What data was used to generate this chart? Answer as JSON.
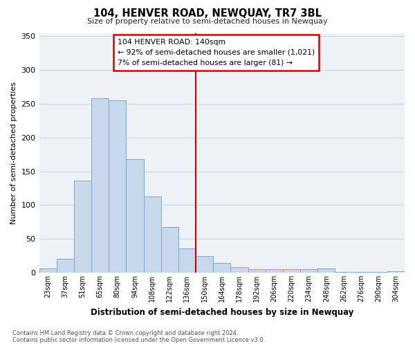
{
  "title": "104, HENVER ROAD, NEWQUAY, TR7 3BL",
  "subtitle": "Size of property relative to semi-detached houses in Newquay",
  "xlabel": "Distribution of semi-detached houses by size in Newquay",
  "ylabel": "Number of semi-detached properties",
  "bin_labels": [
    "23sqm",
    "37sqm",
    "51sqm",
    "65sqm",
    "80sqm",
    "94sqm",
    "108sqm",
    "122sqm",
    "136sqm",
    "150sqm",
    "164sqm",
    "178sqm",
    "192sqm",
    "206sqm",
    "220sqm",
    "234sqm",
    "248sqm",
    "262sqm",
    "276sqm",
    "290sqm",
    "304sqm"
  ],
  "bar_heights": [
    6,
    21,
    136,
    258,
    255,
    168,
    113,
    68,
    36,
    25,
    14,
    8,
    5,
    5,
    5,
    5,
    6,
    1,
    1,
    1,
    2
  ],
  "bar_color": "#c8d8ea",
  "bar_edge_color": "#7aaac8",
  "vline_color": "#cc0000",
  "annotation_title": "104 HENVER ROAD: 140sqm",
  "annotation_line1": "← 92% of semi-detached houses are smaller (1,021)",
  "annotation_line2": "7% of semi-detached houses are larger (81) →",
  "annotation_box_color": "#cc0000",
  "annotation_bg": "#ffffff",
  "ylim": [
    0,
    355
  ],
  "yticks": [
    0,
    50,
    100,
    150,
    200,
    250,
    300,
    350
  ],
  "footer_line1": "Contains HM Land Registry data © Crown copyright and database right 2024.",
  "footer_line2": "Contains public sector information licensed under the Open Government Licence v3.0.",
  "bg_color": "#ffffff",
  "plot_bg_color": "#eef2f7",
  "grid_color": "#c8d4e0"
}
